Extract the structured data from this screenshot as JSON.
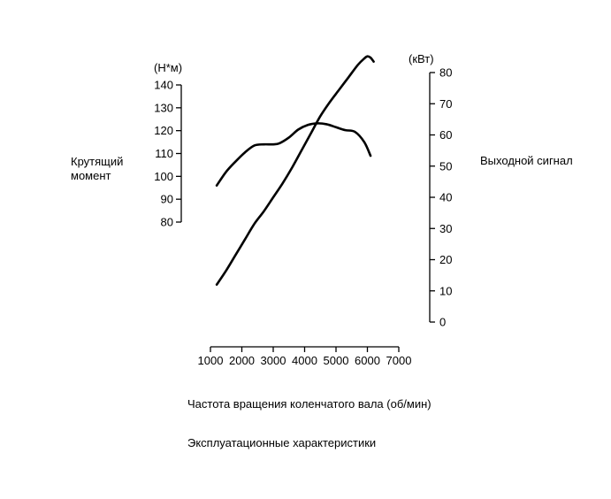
{
  "chart_data": {
    "type": "line",
    "title": "",
    "caption": "Эксплуатационные характеристики",
    "xlabel": "Частота вращения коленчатого вала (об/мин)",
    "xlim": [
      1000,
      7000
    ],
    "x_ticks": [
      "1000",
      "2000",
      "3000",
      "4000",
      "5000",
      "6000",
      "7000"
    ],
    "y_left": {
      "label_lines": [
        "Крутящий",
        "момент"
      ],
      "unit": "(Н*м)",
      "ylim": [
        80,
        140
      ],
      "ticks": [
        "80",
        "90",
        "100",
        "110",
        "120",
        "130",
        "140"
      ]
    },
    "y_right": {
      "label": "Выходной сигнал",
      "unit": "(кВт)",
      "ylim": [
        0,
        80
      ],
      "ticks": [
        "0",
        "10",
        "20",
        "30",
        "40",
        "50",
        "60",
        "70",
        "80"
      ]
    },
    "grid": false,
    "legend": "none",
    "series": [
      {
        "axis": "left",
        "x": [
          1200,
          1500,
          1800,
          2100,
          2400,
          2700,
          3000,
          3200,
          3500,
          3800,
          4100,
          4400,
          4700,
          5000,
          5300,
          5600,
          5900,
          6100
        ],
        "values": [
          96,
          102,
          106.5,
          110.5,
          113.5,
          114,
          114,
          114.5,
          117,
          120.5,
          122.5,
          123.2,
          122.8,
          121.5,
          120.2,
          119.5,
          115,
          109
        ]
      },
      {
        "axis": "right",
        "x": [
          1200,
          1500,
          1800,
          2100,
          2400,
          2700,
          3000,
          3300,
          3600,
          3900,
          4200,
          4500,
          4800,
          5100,
          5400,
          5700,
          5900,
          6000,
          6100,
          6200
        ],
        "values": [
          12,
          16.5,
          21.5,
          26.5,
          31.5,
          35.5,
          40,
          44.5,
          49.5,
          55,
          60.5,
          66,
          70.5,
          74.5,
          78.5,
          82.5,
          84.5,
          85.2,
          84.8,
          83.5
        ]
      }
    ]
  }
}
